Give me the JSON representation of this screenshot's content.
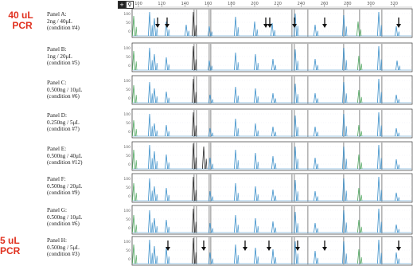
{
  "left_labels": {
    "top": {
      "line1": "40 uL",
      "line2": "PCR"
    },
    "bottom": {
      "line1": "5 uL",
      "line2": "PCR"
    }
  },
  "panels": [
    {
      "title": "Panel A:",
      "amount": "2ng / 40μL",
      "condition": "(condition #4)"
    },
    {
      "title": "Panel B:",
      "amount": "1ng / 20μL",
      "condition": "(condition #5)"
    },
    {
      "title": "Panel C:",
      "amount": "0.500ng / 10μL",
      "condition": "(condition #6)"
    },
    {
      "title": "Panel D:",
      "amount": "0.250ng / 5μL",
      "condition": "(condition #7)"
    },
    {
      "title": "Panel E:",
      "amount": "0.500ng / 40μL",
      "condition": "(condition #12)"
    },
    {
      "title": "Panel F:",
      "amount": "0.500ng / 20μL",
      "condition": "(condition #9)"
    },
    {
      "title": "Panel G:",
      "amount": "0.500ng / 10μL",
      "condition": "(condition #6)"
    },
    {
      "title": "Panel H:",
      "amount": "0.500ng / 5μL",
      "condition": "(condition #3)"
    }
  ],
  "ruler_ticks": [
    "100",
    "120",
    "140",
    "160",
    "180",
    "200",
    "220",
    "240",
    "260",
    "280",
    "300",
    "320"
  ],
  "y_ticks": [
    "100",
    "50",
    "0"
  ],
  "toolbar": {
    "add_icon": "plus-icon",
    "zoom_icon": "zoom-icon"
  },
  "colors": {
    "label_red": "#e0301e",
    "trace_blue": "#3b8fc9",
    "trace_green": "#4aa35a",
    "trace_black": "#222222",
    "arrow": "#111111"
  }
}
